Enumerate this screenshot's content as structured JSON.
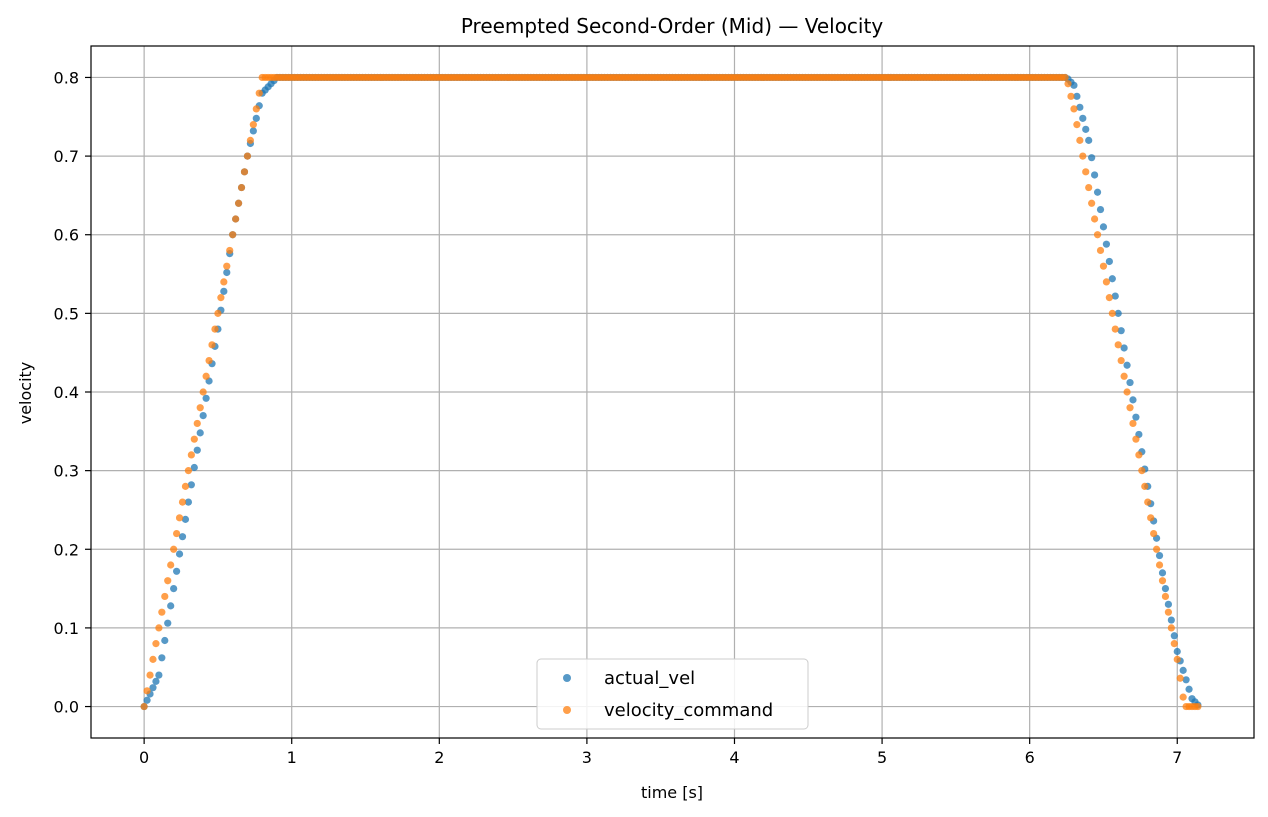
{
  "chart_data": {
    "type": "scatter",
    "title": "Preempted Second-Order (Mid) — Velocity",
    "xlabel": "time [s]",
    "ylabel": "velocity",
    "xlim": [
      -0.36,
      7.52
    ],
    "ylim": [
      -0.04,
      0.84
    ],
    "xticks": [
      0,
      1,
      2,
      3,
      4,
      5,
      6,
      7
    ],
    "xtick_labels": [
      "0",
      "1",
      "2",
      "3",
      "4",
      "5",
      "6",
      "7"
    ],
    "yticks": [
      0.0,
      0.1,
      0.2,
      0.3,
      0.4,
      0.5,
      0.6,
      0.7,
      0.8
    ],
    "ytick_labels": [
      "0.0",
      "0.1",
      "0.2",
      "0.3",
      "0.4",
      "0.5",
      "0.6",
      "0.7",
      "0.8"
    ],
    "grid": true,
    "legend_position": "lower center",
    "series": [
      {
        "name": "actual_vel",
        "color": "#1f77b4",
        "x": [
          0.0,
          0.1,
          0.2,
          0.3,
          0.4,
          0.5,
          0.6,
          0.7,
          0.8,
          0.9,
          1.0,
          1.5,
          2.0,
          2.5,
          3.0,
          3.5,
          4.0,
          4.5,
          5.0,
          5.5,
          6.0,
          6.25,
          6.3,
          6.4,
          6.5,
          6.6,
          6.7,
          6.8,
          6.9,
          7.0,
          7.1,
          7.15
        ],
        "y": [
          0.0,
          0.04,
          0.15,
          0.26,
          0.37,
          0.48,
          0.6,
          0.7,
          0.78,
          0.8,
          0.8,
          0.8,
          0.8,
          0.8,
          0.8,
          0.8,
          0.8,
          0.8,
          0.8,
          0.8,
          0.8,
          0.8,
          0.79,
          0.72,
          0.61,
          0.5,
          0.39,
          0.28,
          0.17,
          0.07,
          0.01,
          0.0
        ]
      },
      {
        "name": "velocity_command",
        "color": "#ff7f0e",
        "x": [
          0.0,
          0.1,
          0.2,
          0.3,
          0.4,
          0.5,
          0.6,
          0.7,
          0.8,
          1.0,
          1.5,
          2.0,
          2.5,
          3.0,
          3.5,
          4.0,
          4.5,
          5.0,
          5.5,
          6.0,
          6.25,
          6.3,
          6.4,
          6.5,
          6.6,
          6.7,
          6.8,
          6.9,
          7.0,
          7.05,
          7.1,
          7.15
        ],
        "y": [
          0.0,
          0.1,
          0.2,
          0.3,
          0.4,
          0.5,
          0.6,
          0.7,
          0.8,
          0.8,
          0.8,
          0.8,
          0.8,
          0.8,
          0.8,
          0.8,
          0.8,
          0.8,
          0.8,
          0.8,
          0.8,
          0.76,
          0.66,
          0.56,
          0.46,
          0.36,
          0.26,
          0.16,
          0.06,
          0.0,
          0.0,
          0.0
        ]
      }
    ]
  }
}
